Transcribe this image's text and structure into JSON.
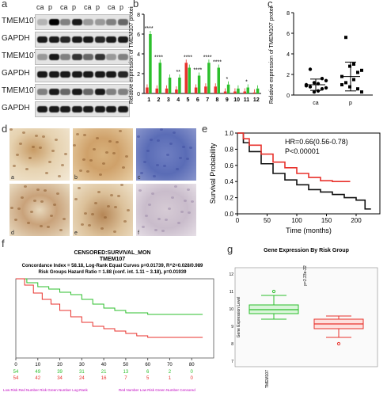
{
  "panel_labels": {
    "a": "a",
    "b": "b",
    "c": "c",
    "d": "d",
    "e": "e",
    "f": "f",
    "g": "g"
  },
  "blot": {
    "lanes": [
      "ca",
      "p",
      "ca",
      "p",
      "ca",
      "p",
      "ca",
      "p"
    ],
    "rows": [
      "TMEM107",
      "GAPDH",
      "TMEM107",
      "GAPDH",
      "TMEM107",
      "GAPDH"
    ]
  },
  "chart_b": {
    "ylabel": "Relative expression of TMEM107 protein",
    "categories": [
      "1",
      "2",
      "3",
      "4",
      "5",
      "6",
      "7",
      "8",
      "9",
      "10",
      "11",
      "12"
    ],
    "series": [
      {
        "color": "#e8322c",
        "values": [
          0.6,
          0.5,
          0.5,
          0.4,
          3.1,
          0.6,
          0.7,
          0.7,
          0.2,
          0.2,
          0.2,
          0.1
        ]
      },
      {
        "color": "#2cbf2c",
        "values": [
          6.0,
          3.1,
          1.6,
          1.6,
          2.6,
          1.8,
          3.1,
          2.6,
          0.9,
          0.5,
          0.6,
          0.5
        ]
      }
    ],
    "stars": [
      "****",
      "****",
      "",
      "**",
      "****",
      "****",
      "****",
      "****",
      "*",
      "",
      "*",
      ""
    ],
    "ylim": [
      0,
      8
    ],
    "yticks": [
      "0",
      "2",
      "4",
      "6",
      "8"
    ]
  },
  "chart_c": {
    "ylabel": "Relative expression of TMEM107 protein",
    "categories": [
      "ca",
      "p"
    ],
    "yticks": [
      "0",
      "2",
      "4",
      "6",
      "8"
    ],
    "ylim": [
      0,
      8
    ],
    "ca_points": [
      1.0,
      0.8,
      1.2,
      0.4,
      0.6,
      1.4,
      0.9,
      2.5,
      0.3,
      1.1,
      1.6,
      0.7
    ],
    "p_points": [
      1.8,
      1.2,
      2.8,
      3.0,
      0.6,
      2.4,
      1.0,
      5.6,
      0.8,
      1.5,
      2.2,
      0.3
    ],
    "ca_mean": 1.0,
    "ca_sd": 0.55,
    "p_mean": 1.8,
    "p_sd": 1.4
  },
  "ihc": {
    "tags": [
      "a",
      "b",
      "c",
      "d",
      "e",
      "f"
    ]
  },
  "chart_e": {
    "hr_text": "HR=0.66(0.56-0.78)",
    "p_text": "P<0.00001",
    "ylabel": "Survival Probability",
    "xlabel": "Time (months)",
    "xticks": [
      "0",
      "50",
      "100",
      "150",
      "200"
    ],
    "yticks": [
      "0.0",
      "0.2",
      "0.4",
      "0.6",
      "0.8",
      "1.0"
    ]
  },
  "chart_f": {
    "title1": "CENSORED:SURVIVAL_MON",
    "title2": "TMEM107",
    "stat1": "Concordance Index = 58.18, Log-Rank Equal Curves p=0.01739, R^2=0.028/0.989",
    "stat2": "Risk Groups Hazard Ratio = 1.88 (conf. int. 1.11 ~ 3.18), p=0.01939",
    "xticks": [
      "0",
      "10",
      "20",
      "30",
      "40",
      "50",
      "60",
      "70",
      "80"
    ],
    "green_counts": [
      "54",
      "49",
      "39",
      "31",
      "21",
      "13",
      "6",
      "2",
      "0"
    ],
    "red_counts": [
      "54",
      "42",
      "34",
      "24",
      "16",
      "7",
      "5",
      "1",
      "0"
    ],
    "footer": [
      "Low Risk  Red Number Risk  Green Number Log-Rank",
      "Red Number Low Risk  Green Number Censored"
    ]
  },
  "chart_g": {
    "title": "Gene Expression By Risk Group",
    "pvalue": "p=2.23e-22",
    "ylabel": "Gene Expression Level",
    "xlabel": "TMEM107"
  }
}
